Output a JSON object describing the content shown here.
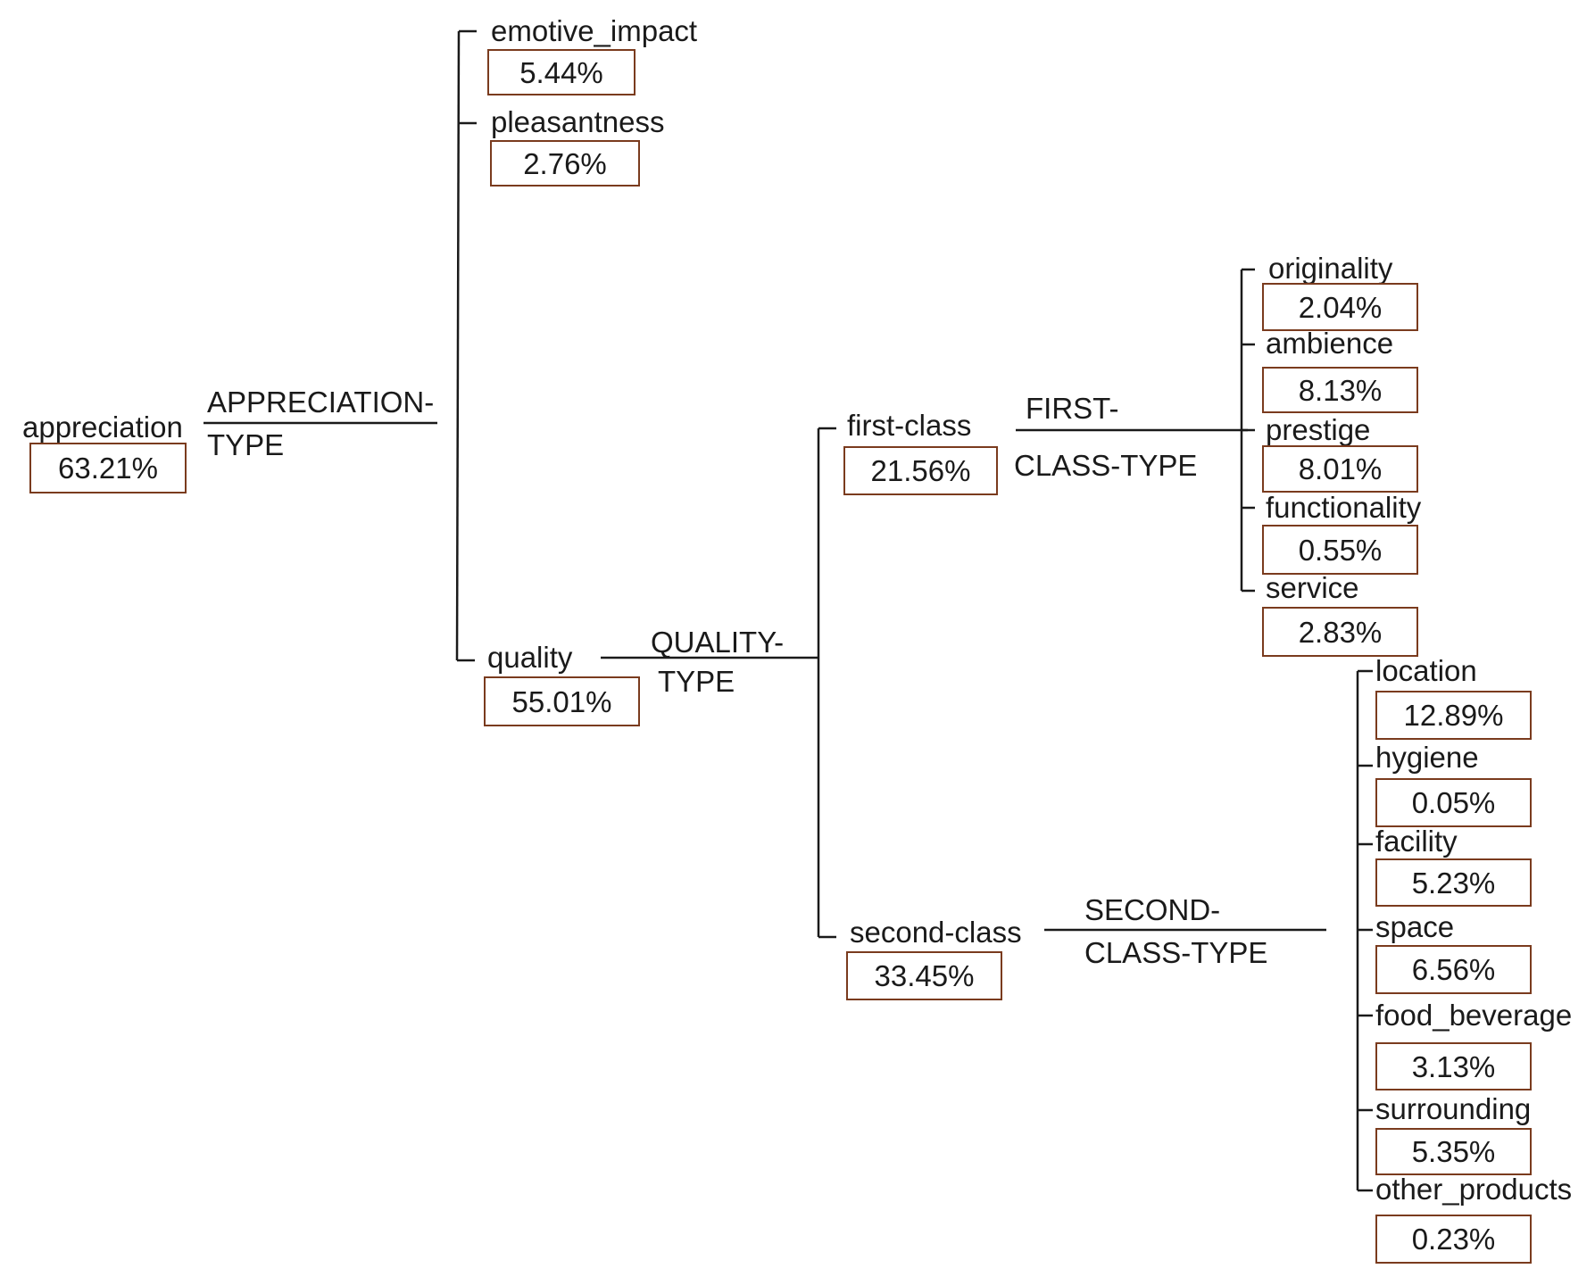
{
  "colors": {
    "box_border": "#7a3b1e",
    "line": "#1a1a1a",
    "text": "#1a1a1a"
  },
  "tree": {
    "root": {
      "label": "appreciation",
      "value": "63.21%"
    },
    "appreciation_system": {
      "line1": "APPRECIATION-",
      "line2": "TYPE"
    },
    "emotive_impact": {
      "label": "emotive_impact",
      "value": "5.44%"
    },
    "pleasantness": {
      "label": "pleasantness",
      "value": "2.76%"
    },
    "quality": {
      "label": "quality",
      "value": "55.01%"
    },
    "quality_system": {
      "line1": "QUALITY-",
      "line2": "TYPE"
    },
    "first_class": {
      "label": "first-class",
      "value": "21.56%"
    },
    "first_class_system": {
      "line1": "FIRST-",
      "line2": "CLASS-TYPE"
    },
    "second_class": {
      "label": "second-class",
      "value": "33.45%"
    },
    "second_class_system": {
      "line1": "SECOND-",
      "line2": "CLASS-TYPE"
    },
    "first_class_children": [
      {
        "label": "originality",
        "value": "2.04%"
      },
      {
        "label": "ambience",
        "value": "8.13%"
      },
      {
        "label": "prestige",
        "value": "8.01%"
      },
      {
        "label": "functionality",
        "value": "0.55%"
      },
      {
        "label": "service",
        "value": "2.83%"
      }
    ],
    "second_class_children": [
      {
        "label": "location",
        "value": "12.89%"
      },
      {
        "label": "hygiene",
        "value": "0.05%"
      },
      {
        "label": "facility",
        "value": "5.23%"
      },
      {
        "label": "space",
        "value": "6.56%"
      },
      {
        "label": "food_beverage",
        "value": "3.13%"
      },
      {
        "label": "surrounding",
        "value": "5.35%"
      },
      {
        "label": "other_products",
        "value": "0.23%"
      }
    ]
  }
}
